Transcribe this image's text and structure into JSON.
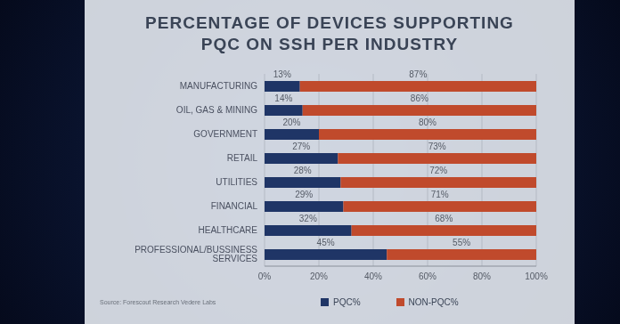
{
  "chart_data": {
    "type": "bar",
    "title": "PERCENTAGE OF DEVICES SUPPORTING PQC ON SSH PER INDUSTRY",
    "categories": [
      "MANUFACTURING",
      "OIL, GAS & MINING",
      "GOVERNMENT",
      "RETAIL",
      "UTILITIES",
      "FINANCIAL",
      "HEALTHCARE",
      "PROFESSIONAL/BUSSINESS SERVICES"
    ],
    "series": [
      {
        "name": "PQC%",
        "color": "#1f3566",
        "values": [
          13,
          14,
          20,
          27,
          28,
          29,
          32,
          45
        ],
        "value_labels": [
          "13%",
          "14%",
          "20%",
          "27%",
          "28%",
          "29%",
          "32%",
          "45%"
        ]
      },
      {
        "name": "NON-PQC%",
        "color": "#c04a2c",
        "values": [
          87,
          86,
          80,
          73,
          72,
          71,
          68,
          55
        ],
        "value_labels": [
          "87%",
          "86%",
          "80%",
          "73%",
          "72%",
          "71%",
          "68%",
          "55%"
        ]
      }
    ],
    "xlim": [
      0,
      100
    ],
    "xticks": [
      {
        "value": 0,
        "label": "0%"
      },
      {
        "value": 20,
        "label": "20%"
      },
      {
        "value": 40,
        "label": "40%"
      },
      {
        "value": 60,
        "label": "60%"
      },
      {
        "value": 80,
        "label": "80%"
      },
      {
        "value": 100,
        "label": "100%"
      }
    ],
    "orientation": "horizontal",
    "stacked": true,
    "data_labels": true,
    "grid": true,
    "legend": "bottom",
    "source": "Source: Forescout Research Vedere Labs"
  }
}
